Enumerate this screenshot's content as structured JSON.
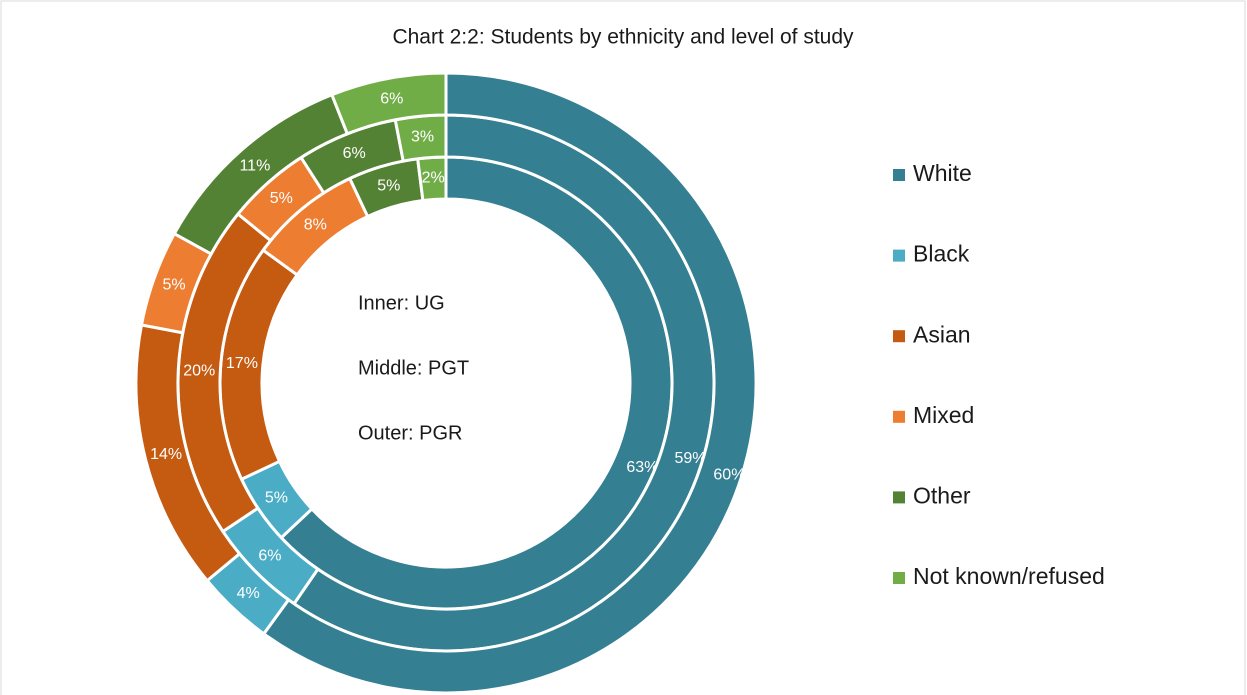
{
  "chart_data": {
    "type": "donut",
    "title": "Chart 2:2: Students by ethnicity and level of study",
    "categories": [
      "White",
      "Black",
      "Asian",
      "Mixed",
      "Other",
      "Not known/refused"
    ],
    "colors": [
      "#357f92",
      "#4bacc6",
      "#c55a11",
      "#ed7d31",
      "#548235",
      "#70ad47"
    ],
    "legend": "right",
    "series": [
      {
        "name": "Inner: UG",
        "values": [
          63,
          5,
          17,
          8,
          5,
          2
        ],
        "value_labels": [
          "63%",
          "5%",
          "17%",
          "8%",
          "5%",
          "2%"
        ]
      },
      {
        "name": "Middle: PGT",
        "values": [
          59,
          6,
          20,
          5,
          6,
          3
        ],
        "value_labels": [
          "59%",
          "6%",
          "20%",
          "5%",
          "6%",
          "3%"
        ]
      },
      {
        "name": "Outer: PGR",
        "values": [
          60,
          4,
          14,
          5,
          11,
          6
        ],
        "value_labels": [
          "60%",
          "4%",
          "14%",
          "5%",
          "11%",
          "6%"
        ]
      }
    ]
  }
}
